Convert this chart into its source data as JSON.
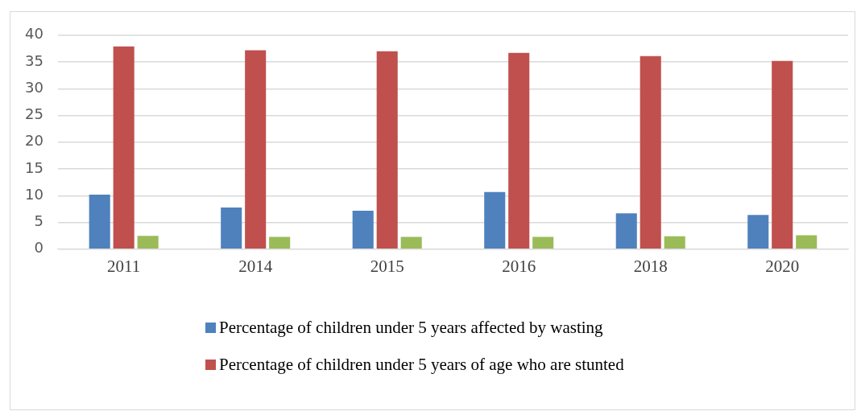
{
  "chart_data": {
    "type": "bar",
    "categories": [
      "2011",
      "2014",
      "2015",
      "2016",
      "2018",
      "2020"
    ],
    "series": [
      {
        "name": "Percentage of children under 5 years affected by wasting",
        "color": "#4f81bd",
        "values": [
          10.2,
          7.8,
          7.2,
          10.7,
          6.7,
          6.4
        ]
      },
      {
        "name": "Percentage of children under 5 years of age who are stunted",
        "color": "#c0504d",
        "values": [
          37.9,
          37.2,
          37.0,
          36.7,
          36.1,
          35.2
        ]
      },
      {
        "color": "#9bbb59",
        "values": [
          2.5,
          2.3,
          2.3,
          2.3,
          2.4,
          2.6
        ]
      }
    ],
    "ylim": [
      0,
      40
    ],
    "yticks": [
      0,
      5,
      10,
      15,
      20,
      25,
      30,
      35,
      40
    ],
    "grid": "y",
    "legend": "bottom"
  }
}
